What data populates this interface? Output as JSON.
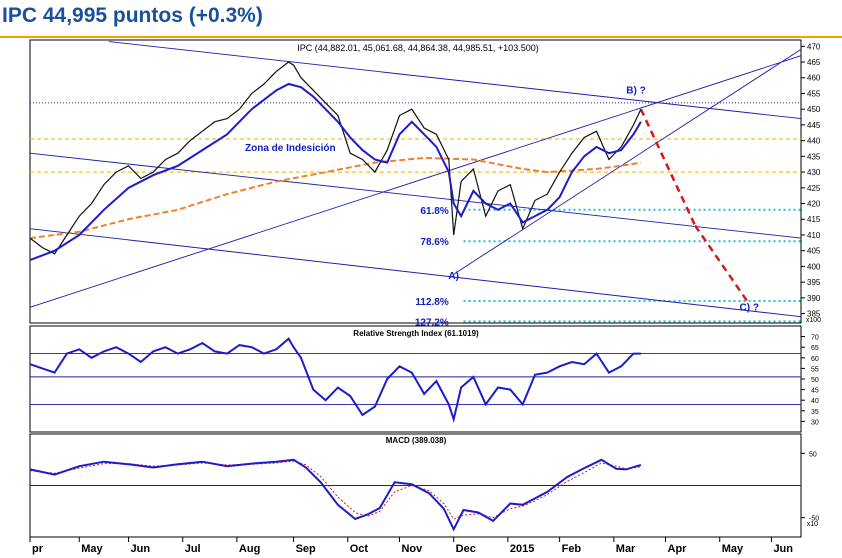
{
  "header": {
    "title": "IPC 44,995 puntos (+0.3%)",
    "accent_color": "#1a4f9c",
    "rule_color": "#f2a200"
  },
  "chart_data": [
    {
      "type": "line",
      "panel": "price",
      "ohlc_label": "IPC (44,882.01, 45,061.68, 44,864.38, 44,985.51, +103.500)",
      "y_scale_label": "x100",
      "ylim": [
        382,
        472
      ],
      "y_ticks": [
        385,
        390,
        395,
        400,
        405,
        410,
        415,
        420,
        425,
        430,
        435,
        440,
        445,
        450,
        455,
        460,
        465,
        470
      ],
      "x_ticks": [
        "pr",
        "May",
        "Jun",
        "Jul",
        "Aug",
        "Sep",
        "Oct",
        "Nov",
        "Dec",
        "2015",
        "Feb",
        "Mar",
        "Apr",
        "May",
        "Jun"
      ],
      "x_tick_index": [
        0,
        20,
        40,
        62,
        84,
        107,
        129,
        150,
        172,
        194,
        215,
        237,
        258,
        280,
        301
      ],
      "x_range": [
        0,
        313
      ],
      "zone_label": "Zona de Indesición",
      "fib_levels": [
        {
          "label": "61.8%",
          "value": 418
        },
        {
          "label": "78.6%",
          "value": 408
        },
        {
          "label": "112.8%",
          "value": 389
        },
        {
          "label": "127.2%",
          "value": 382.5
        }
      ],
      "wave_labels": [
        {
          "label": "A)",
          "x": 172,
          "y": 396
        },
        {
          "label": "B) ?",
          "x": 246,
          "y": 455
        },
        {
          "label": "C) ?",
          "x": 292,
          "y": 386
        }
      ],
      "horizontal_levels": [
        {
          "value": 452,
          "style": "blue-dotted"
        },
        {
          "value": 440.5,
          "style": "gold-dashed"
        },
        {
          "value": 430,
          "style": "gold-dashed"
        }
      ],
      "trendlines": [
        {
          "from": [
            32,
            471.5
          ],
          "to": [
            313,
            447
          ]
        },
        {
          "from": [
            0,
            436
          ],
          "to": [
            313,
            409
          ]
        },
        {
          "from": [
            0,
            412
          ],
          "to": [
            313,
            384
          ]
        },
        {
          "from": [
            0,
            387
          ],
          "to": [
            313,
            467
          ]
        },
        {
          "from": [
            172,
            397.5
          ],
          "to": [
            313,
            469
          ]
        }
      ],
      "forecast_path": [
        [
          248,
          450
        ],
        [
          270,
          413
        ],
        [
          292,
          388
        ]
      ],
      "series": [
        {
          "role": "price",
          "x": [
            0,
            5,
            10,
            15,
            20,
            25,
            30,
            35,
            40,
            45,
            50,
            55,
            60,
            65,
            70,
            75,
            80,
            85,
            90,
            95,
            100,
            105,
            107,
            110,
            115,
            120,
            125,
            130,
            135,
            140,
            145,
            150,
            155,
            160,
            165,
            170,
            172,
            175,
            180,
            185,
            190,
            195,
            200,
            205,
            210,
            215,
            220,
            225,
            230,
            235,
            240,
            245,
            248
          ],
          "y": [
            409,
            406,
            404,
            410,
            416,
            420,
            426,
            430,
            432,
            428,
            430,
            434,
            436,
            440,
            443,
            446,
            447,
            450,
            455,
            458,
            462,
            465,
            464,
            460,
            456,
            452,
            448,
            436,
            434,
            430,
            437,
            448,
            450,
            444,
            442,
            434,
            410,
            427,
            431,
            416,
            424,
            426,
            412,
            421,
            423,
            430,
            436,
            441,
            443,
            434,
            438,
            445,
            450
          ]
        },
        {
          "role": "short moving average",
          "x": [
            0,
            10,
            20,
            30,
            40,
            50,
            60,
            70,
            80,
            90,
            100,
            105,
            110,
            115,
            120,
            125,
            130,
            135,
            140,
            145,
            150,
            155,
            160,
            165,
            170,
            172,
            175,
            180,
            185,
            190,
            195,
            200,
            205,
            210,
            215,
            220,
            225,
            230,
            235,
            240,
            245,
            248
          ],
          "y": [
            402,
            405,
            410,
            418,
            425,
            429,
            432,
            437,
            442,
            450,
            456,
            458,
            457,
            454,
            450,
            446,
            441,
            437,
            434,
            433,
            442,
            446,
            442,
            438,
            430,
            420,
            416,
            424,
            420,
            418,
            420,
            414,
            416,
            418,
            422,
            430,
            435,
            438,
            436,
            437,
            442,
            446
          ]
        },
        {
          "role": "long moving average",
          "x": [
            0,
            20,
            40,
            60,
            80,
            100,
            120,
            140,
            160,
            180,
            200,
            210,
            220,
            230,
            240,
            248
          ],
          "y": [
            409,
            411,
            415,
            418,
            423,
            427,
            430,
            433,
            434.5,
            434,
            431,
            430,
            430.5,
            431,
            432,
            433
          ]
        }
      ]
    },
    {
      "type": "line",
      "panel": "oscillator",
      "title": "Relative Strength Index (61.1019)",
      "ylim": [
        25,
        75
      ],
      "y_ticks": [
        30,
        35,
        40,
        45,
        50,
        55,
        60,
        65,
        70
      ],
      "levels": [
        62,
        51,
        38
      ],
      "series": [
        {
          "role": "RSI",
          "x": [
            0,
            5,
            10,
            15,
            20,
            25,
            30,
            35,
            40,
            45,
            50,
            55,
            60,
            65,
            70,
            75,
            80,
            85,
            90,
            95,
            100,
            105,
            107,
            110,
            115,
            120,
            125,
            130,
            135,
            140,
            145,
            150,
            155,
            160,
            165,
            170,
            172,
            175,
            180,
            185,
            190,
            195,
            200,
            205,
            210,
            215,
            220,
            225,
            230,
            235,
            240,
            245,
            248
          ],
          "y": [
            57,
            55,
            53,
            62,
            64,
            60,
            63,
            65,
            62,
            58,
            63,
            65,
            62,
            64,
            67,
            63,
            62,
            66,
            65,
            62,
            64,
            69,
            65,
            60,
            45,
            40,
            46,
            42,
            33,
            37,
            50,
            56,
            53,
            43,
            49,
            38,
            31,
            46,
            51,
            38,
            46,
            45,
            38,
            52,
            53,
            56,
            58,
            57,
            62,
            53,
            56,
            62,
            62
          ]
        }
      ]
    },
    {
      "type": "line",
      "panel": "oscillator",
      "title": "MACD (389.038)",
      "ylim": [
        -80,
        80
      ],
      "y_ticks": [
        50,
        -50
      ],
      "y_scale_label": "x10",
      "levels": [
        0
      ],
      "series": [
        {
          "role": "MACD",
          "x": [
            0,
            10,
            20,
            30,
            40,
            50,
            60,
            70,
            80,
            90,
            100,
            107,
            112,
            118,
            125,
            132,
            137,
            142,
            148,
            155,
            162,
            168,
            172,
            176,
            182,
            188,
            195,
            200,
            205,
            210,
            218,
            225,
            232,
            238,
            242,
            248
          ],
          "y": [
            25,
            17,
            30,
            37,
            33,
            28,
            33,
            37,
            30,
            34,
            37,
            40,
            28,
            5,
            -30,
            -52,
            -45,
            -35,
            5,
            2,
            -12,
            -36,
            -68,
            -38,
            -42,
            -55,
            -28,
            -30,
            -20,
            -10,
            13,
            27,
            40,
            26,
            25,
            32
          ]
        },
        {
          "role": "signal",
          "x": [
            0,
            10,
            20,
            30,
            40,
            50,
            60,
            70,
            80,
            90,
            100,
            107,
            112,
            118,
            125,
            132,
            137,
            142,
            148,
            155,
            162,
            168,
            172,
            176,
            182,
            188,
            195,
            200,
            205,
            210,
            218,
            225,
            232,
            238,
            242,
            248
          ],
          "y": [
            23,
            19,
            27,
            34,
            34,
            30,
            32,
            35,
            32,
            33,
            35,
            38,
            32,
            14,
            -18,
            -42,
            -48,
            -40,
            -10,
            0,
            -8,
            -28,
            -52,
            -46,
            -44,
            -50,
            -36,
            -32,
            -24,
            -14,
            6,
            20,
            35,
            30,
            26,
            29
          ]
        }
      ]
    }
  ]
}
